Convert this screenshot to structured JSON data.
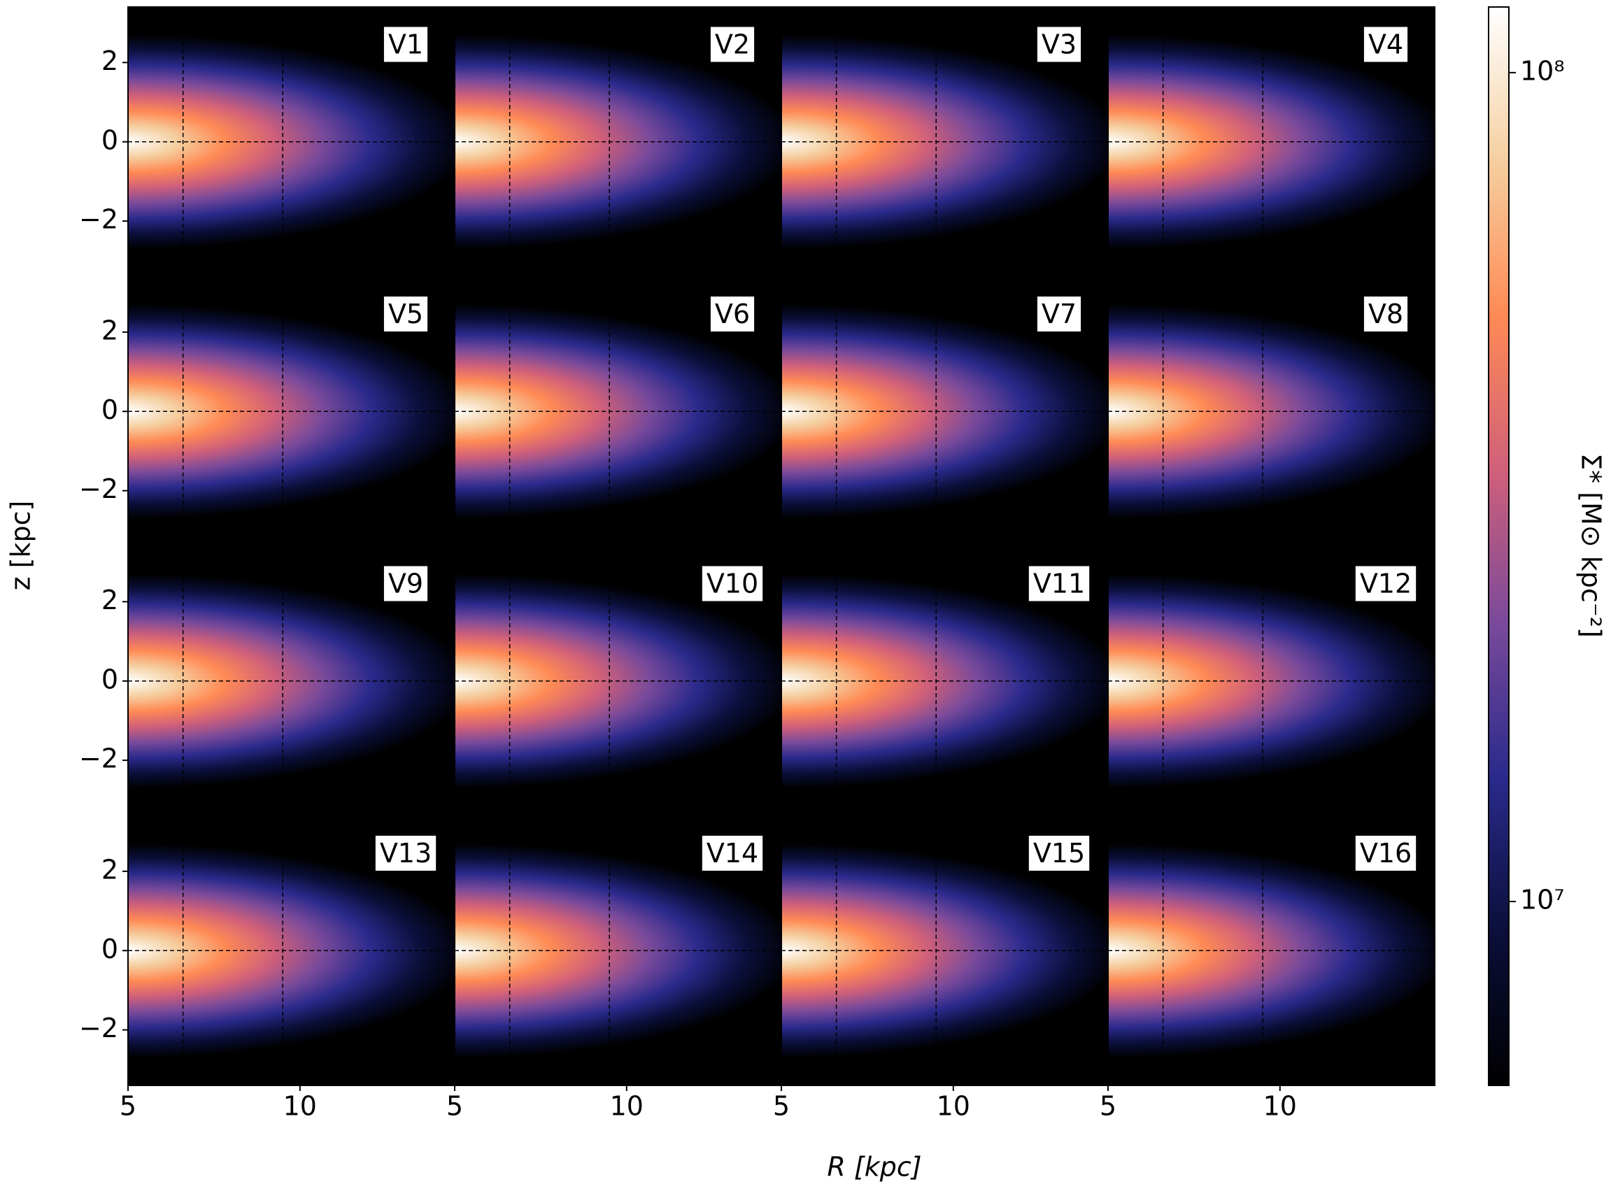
{
  "chart_data": {
    "type": "heatmap",
    "xlabel": "R [kpc]",
    "ylabel": "z [kpc]",
    "panels": [
      "V1",
      "V2",
      "V3",
      "V4",
      "V5",
      "V6",
      "V7",
      "V8",
      "V9",
      "V10",
      "V11",
      "V12",
      "V13",
      "V14",
      "V15",
      "V16"
    ],
    "xlim": [
      5,
      14.5
    ],
    "xticks": [
      5,
      10
    ],
    "ylim": [
      -3.4,
      3.4
    ],
    "yticks": [
      {
        "value": -2,
        "label": "−2"
      },
      0,
      2
    ],
    "vlines": [
      6.6,
      9.5
    ],
    "hlines": [
      0
    ],
    "colormap": [
      "#000000",
      "#0b0f3a",
      "#2a2a8c",
      "#7a4a9a",
      "#d0607a",
      "#ff8a55",
      "#f5cfa0",
      "#ffffff"
    ],
    "colorbar": {
      "label": "Σ* [M⊙ kpc⁻²]",
      "scale": "log",
      "clim": [
        6000000,
        120000000
      ],
      "ticks": [
        {
          "value": 10000000,
          "label": "10⁷"
        },
        {
          "value": 100000000,
          "label": "10⁸"
        }
      ]
    }
  }
}
